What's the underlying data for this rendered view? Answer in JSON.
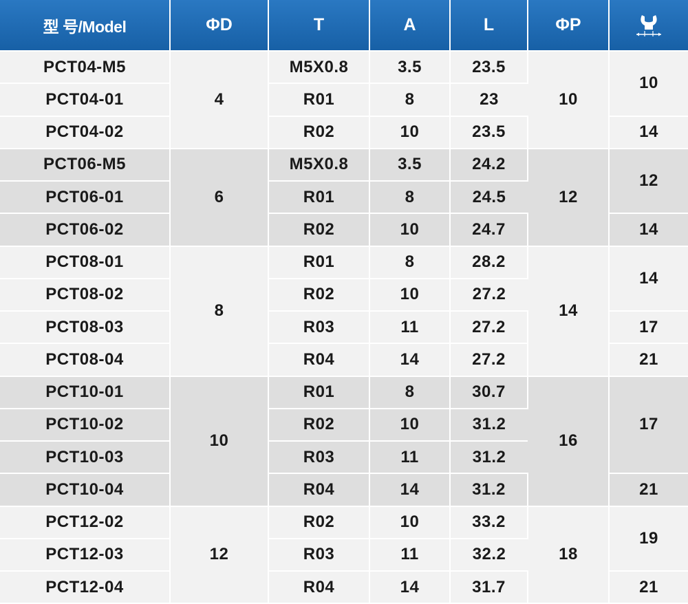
{
  "header": {
    "model": "型 号/Model",
    "d": "ΦD",
    "t": "T",
    "a": "A",
    "l": "L",
    "p": "ΦP",
    "wrench_icon": "wrench-size-icon"
  },
  "groups": [
    {
      "d": "4",
      "p": "10",
      "rows": [
        {
          "model": "PCT04-M5",
          "t": "M5X0.8",
          "a": "3.5",
          "l": "23.5"
        },
        {
          "model": "PCT04-01",
          "t": "R01",
          "a": "8",
          "l": "23"
        },
        {
          "model": "PCT04-02",
          "t": "R02",
          "a": "10",
          "l": "23.5"
        }
      ],
      "wrench": [
        "10",
        "14"
      ]
    },
    {
      "d": "6",
      "p": "12",
      "rows": [
        {
          "model": "PCT06-M5",
          "t": "M5X0.8",
          "a": "3.5",
          "l": "24.2"
        },
        {
          "model": "PCT06-01",
          "t": "R01",
          "a": "8",
          "l": "24.5"
        },
        {
          "model": "PCT06-02",
          "t": "R02",
          "a": "10",
          "l": "24.7"
        }
      ],
      "wrench": [
        "12",
        "14"
      ]
    },
    {
      "d": "8",
      "p": "14",
      "rows": [
        {
          "model": "PCT08-01",
          "t": "R01",
          "a": "8",
          "l": "28.2"
        },
        {
          "model": "PCT08-02",
          "t": "R02",
          "a": "10",
          "l": "27.2"
        },
        {
          "model": "PCT08-03",
          "t": "R03",
          "a": "11",
          "l": "27.2"
        },
        {
          "model": "PCT08-04",
          "t": "R04",
          "a": "14",
          "l": "27.2"
        }
      ],
      "wrench": [
        "14",
        "17",
        "21"
      ]
    },
    {
      "d": "10",
      "p": "16",
      "rows": [
        {
          "model": "PCT10-01",
          "t": "R01",
          "a": "8",
          "l": "30.7"
        },
        {
          "model": "PCT10-02",
          "t": "R02",
          "a": "10",
          "l": "31.2"
        },
        {
          "model": "PCT10-03",
          "t": "R03",
          "a": "11",
          "l": "31.2"
        },
        {
          "model": "PCT10-04",
          "t": "R04",
          "a": "14",
          "l": "31.2"
        }
      ],
      "wrench": [
        "17",
        "21"
      ]
    },
    {
      "d": "12",
      "p": "18",
      "rows": [
        {
          "model": "PCT12-02",
          "t": "R02",
          "a": "10",
          "l": "33.2"
        },
        {
          "model": "PCT12-03",
          "t": "R03",
          "a": "11",
          "l": "32.2"
        },
        {
          "model": "PCT12-04",
          "t": "R04",
          "a": "14",
          "l": "31.7"
        }
      ],
      "wrench": [
        "19",
        "21"
      ]
    }
  ]
}
